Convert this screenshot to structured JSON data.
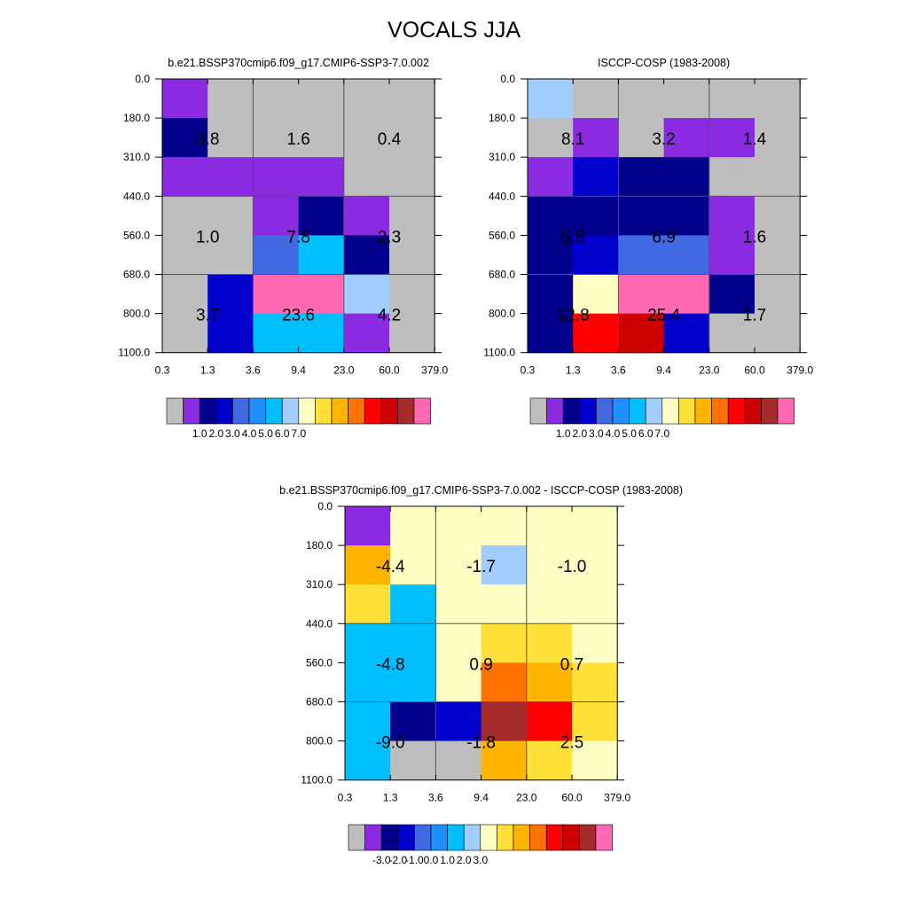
{
  "title": "VOCALS JJA",
  "chart_data": [
    {
      "type": "heatmap",
      "title": "b.e21.BSSP370cmip6.f09_g17.CMIP6-SSP3-7.0.002",
      "x_tick_labels": [
        "0.3",
        "1.3",
        "3.6",
        "9.4",
        "23.0",
        "60.0",
        "379.0"
      ],
      "y_tick_labels": [
        "0.0",
        "180.0",
        "310.0",
        "440.0",
        "560.0",
        "680.0",
        "800.0",
        "1100.0"
      ],
      "cells": [
        [
          1,
          0,
          0,
          0,
          0,
          0
        ],
        [
          2,
          0,
          0,
          0,
          0,
          0
        ],
        [
          1,
          1,
          1,
          1,
          0,
          0
        ],
        [
          0,
          0,
          1,
          2,
          1,
          0
        ],
        [
          0,
          0,
          4,
          6,
          2,
          0
        ],
        [
          0,
          3,
          15,
          15,
          7,
          0
        ],
        [
          0,
          3,
          6,
          6,
          1,
          0
        ]
      ],
      "box_labels": [
        [
          "3.8",
          "1.6",
          "0.4"
        ],
        [
          "1.0",
          "7.8",
          "2.3"
        ],
        [
          "3.7",
          "23.6",
          "4.2"
        ]
      ],
      "colorbar_labels": [
        "1.0",
        "2.0",
        "3.0",
        "4.0",
        "5.0",
        "6.0",
        "7.0"
      ]
    },
    {
      "type": "heatmap",
      "title": "ISCCP-COSP (1983-2008)",
      "x_tick_labels": [
        "0.3",
        "1.3",
        "3.6",
        "9.4",
        "23.0",
        "60.0",
        "379.0"
      ],
      "y_tick_labels": [
        "0.0",
        "180.0",
        "310.0",
        "440.0",
        "560.0",
        "680.0",
        "800.0",
        "1100.0"
      ],
      "cells": [
        [
          7,
          0,
          0,
          0,
          0,
          0
        ],
        [
          0,
          1,
          0,
          1,
          1,
          0
        ],
        [
          1,
          3,
          2,
          2,
          0,
          0
        ],
        [
          2,
          2,
          2,
          2,
          1,
          0
        ],
        [
          2,
          3,
          4,
          4,
          1,
          0
        ],
        [
          2,
          8,
          15,
          15,
          2,
          0
        ],
        [
          2,
          12,
          13,
          3,
          0,
          0
        ]
      ],
      "box_labels": [
        [
          "8.1",
          "3.2",
          "1.4"
        ],
        [
          "5.8",
          "6.9",
          "1.6"
        ],
        [
          "12.8",
          "25.4",
          "1.7"
        ]
      ],
      "colorbar_labels": [
        "1.0",
        "2.0",
        "3.0",
        "4.0",
        "5.0",
        "6.0",
        "7.0"
      ]
    },
    {
      "type": "heatmap",
      "title": "b.e21.BSSP370cmip6.f09_g17.CMIP6-SSP3-7.0.002 - ISCCP-COSP (1983-2008)",
      "x_tick_labels": [
        "0.3",
        "1.3",
        "3.6",
        "9.4",
        "23.0",
        "60.0",
        "379.0"
      ],
      "y_tick_labels": [
        "0.0",
        "180.0",
        "310.0",
        "440.0",
        "560.0",
        "680.0",
        "800.0",
        "1100.0"
      ],
      "cells": [
        [
          1,
          8,
          8,
          8,
          8,
          8
        ],
        [
          10,
          8,
          8,
          7,
          8,
          8
        ],
        [
          9,
          6,
          8,
          8,
          8,
          8
        ],
        [
          6,
          6,
          8,
          9,
          9,
          8
        ],
        [
          6,
          6,
          8,
          11,
          10,
          9
        ],
        [
          6,
          2,
          3,
          14,
          12,
          9
        ],
        [
          6,
          0,
          0,
          10,
          9,
          8
        ]
      ],
      "box_labels": [
        [
          "-4.4",
          "-1.7",
          "-1.0"
        ],
        [
          "-4.8",
          "0.9",
          "0.7"
        ],
        [
          "-9.0",
          "-1.8",
          "2.5"
        ]
      ],
      "colorbar_labels": [
        "-3.0",
        "-2.0",
        "-1.0",
        "0.0",
        "1.0",
        "2.0",
        "3.0"
      ]
    }
  ],
  "palette": [
    "#bebebe",
    "#8a2be2",
    "#00008b",
    "#0000cd",
    "#4169e1",
    "#1e90ff",
    "#00bfff",
    "#a2cdff",
    "#ffffc4",
    "#ffe13a",
    "#ffb400",
    "#ff7100",
    "#ff0000",
    "#cd0000",
    "#a52a2a",
    "#ff69b4"
  ]
}
